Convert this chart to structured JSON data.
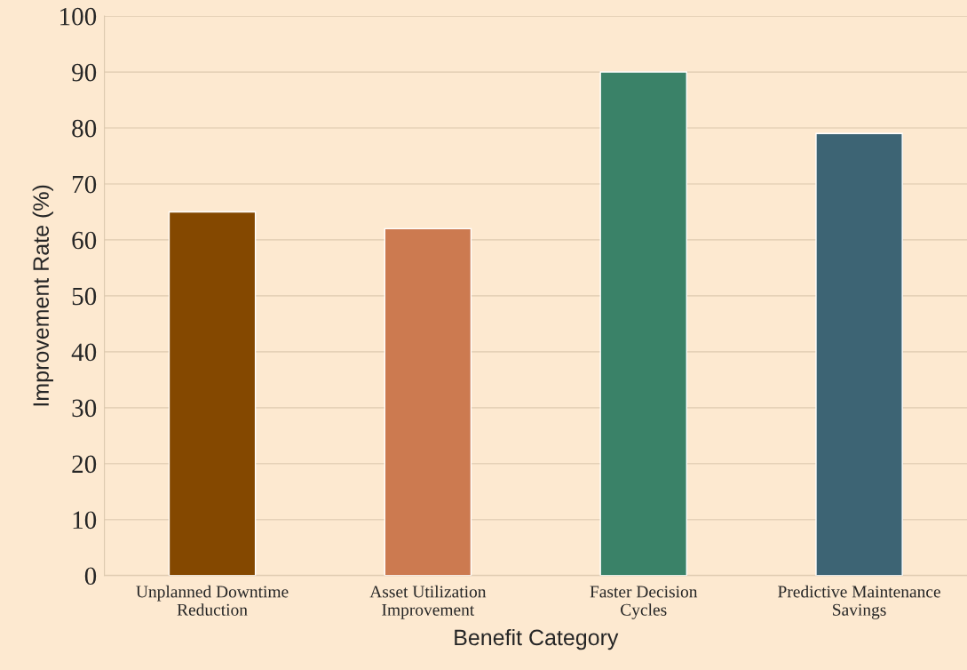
{
  "chart_data": {
    "type": "bar",
    "xlabel": "Benefit Category",
    "ylabel": "Improvement Rate (%)",
    "categories": [
      "Unplanned Downtime\nReduction",
      "Asset Utilization\nImprovement",
      "Faster Decision\nCycles",
      "Predictive Maintenance\nSavings"
    ],
    "values": [
      65,
      62,
      90,
      79
    ],
    "colors": [
      "#844800",
      "#cc7a50",
      "#3a8268",
      "#3d6474"
    ],
    "ylim": [
      0,
      100
    ],
    "yticks": [
      0,
      10,
      20,
      30,
      40,
      50,
      60,
      70,
      80,
      90,
      100
    ],
    "grid": "y",
    "legend": false
  }
}
